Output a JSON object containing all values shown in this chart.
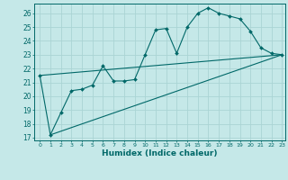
{
  "xlabel": "Humidex (Indice chaleur)",
  "bg_color": "#c5e8e8",
  "grid_color": "#aad4d4",
  "line_color": "#006868",
  "xlim": [
    -0.5,
    23.3
  ],
  "ylim": [
    16.8,
    26.7
  ],
  "yticks": [
    17,
    18,
    19,
    20,
    21,
    22,
    23,
    24,
    25,
    26
  ],
  "xticks": [
    0,
    1,
    2,
    3,
    4,
    5,
    6,
    7,
    8,
    9,
    10,
    11,
    12,
    13,
    14,
    15,
    16,
    17,
    18,
    19,
    20,
    21,
    22,
    23
  ],
  "line1_x": [
    0,
    1,
    2,
    3,
    4,
    5,
    6,
    7,
    8,
    9,
    10,
    11,
    12,
    13,
    14,
    15,
    16,
    17,
    18,
    19,
    20,
    21,
    22,
    23
  ],
  "line1_y": [
    21.5,
    17.2,
    18.8,
    20.4,
    20.5,
    20.8,
    22.2,
    21.1,
    21.1,
    21.2,
    23.0,
    24.8,
    24.9,
    23.1,
    25.0,
    26.0,
    26.4,
    26.0,
    25.8,
    25.6,
    24.7,
    23.5,
    23.1,
    23.0
  ],
  "line2_x": [
    0,
    23
  ],
  "line2_y": [
    21.5,
    23.0
  ],
  "line3_x": [
    1,
    23
  ],
  "line3_y": [
    17.2,
    23.0
  ],
  "marker_x": [
    0,
    2,
    3,
    5,
    6,
    9,
    10,
    11,
    13,
    14,
    15,
    16,
    17,
    19,
    20,
    22,
    23
  ],
  "marker_y": [
    21.5,
    18.8,
    20.4,
    20.8,
    22.2,
    21.2,
    23.0,
    24.8,
    23.1,
    25.0,
    26.0,
    26.4,
    26.0,
    25.6,
    24.7,
    23.1,
    23.0
  ]
}
